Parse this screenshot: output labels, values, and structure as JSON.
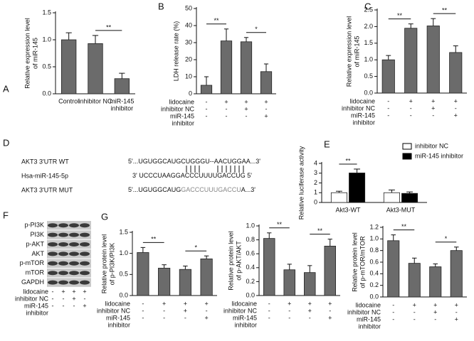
{
  "chart_data": [
    {
      "type": "bar",
      "label": "A",
      "ylabel": [
        "Relative expression level",
        "of miR-145"
      ],
      "categories": [
        [
          "Control"
        ],
        [
          "inhibitor NC"
        ],
        [
          "miR-145",
          "inhibitor"
        ]
      ],
      "values": [
        1.0,
        0.93,
        0.28
      ],
      "errors": [
        0.13,
        0.15,
        0.1
      ],
      "color": "#6b6b6b",
      "ylim": [
        0,
        1.5
      ],
      "yticks": [
        {
          "value": 0,
          "label": "0.0"
        },
        0.5,
        {
          "value": 1,
          "label": "1.0"
        },
        1.5
      ],
      "annotations": [
        "**"
      ]
    },
    {
      "type": "bar",
      "label": "B",
      "ylabel": [
        "LDH release rate (%)"
      ],
      "conditions": {
        "labels": [
          [
            "lidocaine"
          ],
          [
            "inhibitor NC"
          ],
          [
            "miR-145",
            "inhibitor"
          ]
        ],
        "rows": [
          [
            "-",
            "+",
            "+",
            "+"
          ],
          [
            "-",
            "-",
            "+",
            "-"
          ],
          [
            "-",
            "-",
            "-",
            "+"
          ]
        ]
      },
      "values": [
        5,
        31,
        30.5,
        13
      ],
      "errors": [
        5,
        7,
        2.5,
        4.5
      ],
      "color": "#6b6b6b",
      "ylim": [
        0,
        50
      ],
      "yticks": [
        0,
        10,
        20,
        30,
        40,
        50
      ],
      "annotations": [
        "**",
        "*"
      ]
    },
    {
      "type": "bar",
      "label": "C",
      "ylabel": [
        "Relative expression level",
        "of miR-145"
      ],
      "conditions": {
        "labels": [
          [
            "lidocaine"
          ],
          [
            "inhibitor NC"
          ],
          [
            "miR-145",
            "inhibitor"
          ]
        ],
        "rows": [
          [
            "-",
            "+",
            "+",
            "+"
          ],
          [
            "-",
            "-",
            "+",
            "-"
          ],
          [
            "-",
            "-",
            "-",
            "+"
          ]
        ]
      },
      "values": [
        1.0,
        1.95,
        2.02,
        1.22
      ],
      "errors": [
        0.13,
        0.13,
        0.22,
        0.2
      ],
      "color": "#6b6b6b",
      "ylim": [
        0,
        2.5
      ],
      "yticks": [
        {
          "value": 0,
          "label": "0.0"
        },
        0.5,
        {
          "value": 1,
          "label": "1.0"
        },
        1.5,
        {
          "value": 2,
          "label": "2.0"
        },
        2.5
      ],
      "annotations": [
        "**",
        "**"
      ]
    },
    {
      "type": "bar",
      "label": "E",
      "ylabel": [
        "Relative luciferase activity"
      ],
      "categories": [
        [
          "Akt3-WT"
        ],
        [
          "Akt3-MUT"
        ]
      ],
      "series": [
        {
          "name": "inhibitor NC",
          "color": "#ffffff",
          "values": [
            1.0,
            1.0
          ],
          "errors": [
            0.15,
            0.28
          ]
        },
        {
          "name": "miR-145 inhibitor",
          "color": "#000000",
          "values": [
            3.02,
            0.93
          ],
          "errors": [
            0.4,
            0.15
          ]
        }
      ],
      "ylim": [
        0,
        4
      ],
      "yticks": [
        0,
        1,
        2,
        3,
        4
      ],
      "annotations": [
        "**"
      ]
    },
    {
      "type": "bar",
      "label": "G",
      "ylabel": [
        "Relative protein level",
        "of p-PI3K/PI3K"
      ],
      "conditions": {
        "labels": [
          [
            "lidocaine"
          ],
          [
            "inhibitor NC"
          ],
          [
            "miR-145",
            "inhibitor"
          ]
        ],
        "rows": [
          [
            "-",
            "+",
            "+",
            "+"
          ],
          [
            "-",
            "-",
            "+",
            "-"
          ],
          [
            "-",
            "-",
            "-",
            "+"
          ]
        ]
      },
      "values": [
        1.02,
        0.65,
        0.62,
        0.87
      ],
      "errors": [
        0.12,
        0.08,
        0.08,
        0.07
      ],
      "color": "#6b6b6b",
      "ylim": [
        0,
        1.5
      ],
      "yticks": [
        {
          "value": 0,
          "label": "0.0"
        },
        0.5,
        {
          "value": 1,
          "label": "1.0"
        },
        1.5
      ],
      "annotations": [
        "**",
        "*"
      ]
    },
    {
      "type": "bar",
      "ylabel": [
        "Relative protein level",
        "of p-AKT/AKT"
      ],
      "conditions": {
        "labels": [
          [
            "lidocaine"
          ],
          [
            "inhibitor NC"
          ],
          [
            "miR-145",
            "inhibitor"
          ]
        ],
        "rows": [
          [
            "-",
            "+",
            "+",
            "+"
          ],
          [
            "-",
            "-",
            "+",
            "-"
          ],
          [
            "-",
            "-",
            "-",
            "+"
          ]
        ]
      },
      "values": [
        0.82,
        0.37,
        0.33,
        0.71
      ],
      "errors": [
        0.08,
        0.08,
        0.1,
        0.1
      ],
      "color": "#6b6b6b",
      "ylim": [
        0,
        1
      ],
      "yticks": [
        {
          "value": 0,
          "label": "0.0"
        },
        0.2,
        0.4,
        0.6,
        0.8,
        {
          "value": 1,
          "label": "1.0"
        }
      ],
      "annotations": [
        "**",
        "**"
      ]
    },
    {
      "type": "bar",
      "ylabel": [
        "Relative protein level",
        "of p-mTOR/mTOR"
      ],
      "conditions": {
        "labels": [
          [
            "lidocaine"
          ],
          [
            "inhibitor NC"
          ],
          [
            "miR-145",
            "inhibitor"
          ]
        ],
        "rows": [
          [
            "-",
            "+",
            "+",
            "+"
          ],
          [
            "-",
            "-",
            "+",
            "-"
          ],
          [
            "-",
            "-",
            "-",
            "+"
          ]
        ]
      },
      "values": [
        0.97,
        0.58,
        0.52,
        0.8
      ],
      "errors": [
        0.1,
        0.09,
        0.05,
        0.06
      ],
      "color": "#6b6b6b",
      "ylim": [
        0,
        1.2
      ],
      "yticks": [
        {
          "value": 0,
          "label": "0.0"
        },
        0.2,
        0.4,
        0.6,
        0.8,
        {
          "value": 1,
          "label": "1.0"
        },
        1.2
      ],
      "annotations": [
        "**",
        "*"
      ]
    }
  ],
  "sequence_panel": {
    "label": "D",
    "rows": [
      {
        "name": "AKT3 3'UTR WT",
        "segments": [
          "5'...UGUGGCAUGCUGGGU--AACUGGAA...3'"
        ]
      },
      {
        "name": "Hsa-miR-145-5p",
        "segments": [
          "3' UCCCUAAGGACCCUUUUGACCUG 5'"
        ]
      },
      {
        "name": "AKT3 3'UTR MUT",
        "segments": [
          "5'...UGUGGCAUG",
          "GACCCUUUGACCU",
          "A...3'"
        ]
      }
    ]
  },
  "blot_panel": {
    "label": "F",
    "proteins": [
      "p-PI3K",
      "PI3K",
      "p-AKT",
      "AKT",
      "p-mTOR",
      "mTOR",
      "GAPDH"
    ],
    "conditions": {
      "labels": [
        [
          "lidocaine"
        ],
        [
          "inhibitor NC"
        ],
        [
          "miR-145",
          "inhibitor"
        ]
      ],
      "rows": [
        [
          "-",
          "+",
          "+",
          "+"
        ],
        [
          "-",
          "-",
          "+",
          "-"
        ],
        [
          "-",
          "-",
          "-",
          "+"
        ]
      ]
    }
  }
}
